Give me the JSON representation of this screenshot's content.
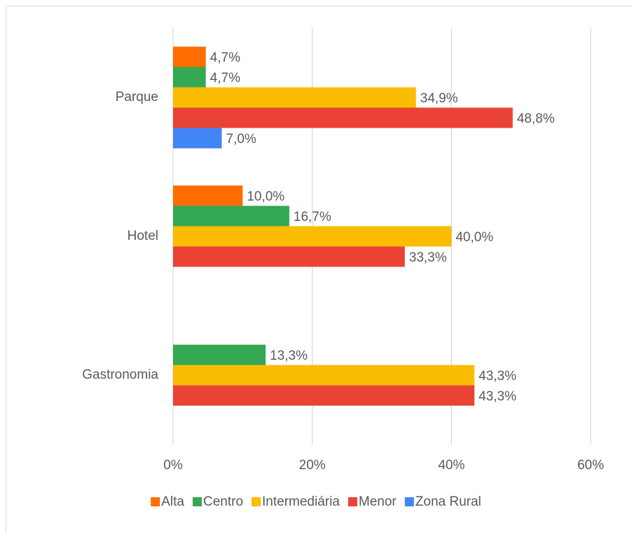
{
  "chart_data": {
    "type": "barh",
    "categories": [
      "Parque",
      "Hotel",
      "Gastronomia"
    ],
    "series": [
      {
        "name": "Alta",
        "color": "#ff6d01",
        "values": [
          4.7,
          10.0,
          null
        ],
        "value_labels": [
          "4,7%",
          "10,0%",
          null
        ]
      },
      {
        "name": "Centro",
        "color": "#34a853",
        "values": [
          4.7,
          16.7,
          13.3
        ],
        "value_labels": [
          "4,7%",
          "16,7%",
          "13,3%"
        ]
      },
      {
        "name": "Intermediária",
        "color": "#fbbc04",
        "values": [
          34.9,
          40.0,
          43.3
        ],
        "value_labels": [
          "34,9%",
          "40,0%",
          "43,3%"
        ]
      },
      {
        "name": "Menor",
        "color": "#ea4335",
        "values": [
          48.8,
          33.3,
          43.3
        ],
        "value_labels": [
          "48,8%",
          "33,3%",
          "43,3%"
        ]
      },
      {
        "name": "Zona Rural",
        "color": "#4285f4",
        "values": [
          7.0,
          null,
          null
        ],
        "value_labels": [
          "7,0%",
          null,
          null
        ]
      }
    ],
    "xlim": [
      0,
      60
    ],
    "xticks": [
      {
        "value": 0,
        "label": "0%"
      },
      {
        "value": 20,
        "label": "20%"
      },
      {
        "value": 40,
        "label": "40%"
      },
      {
        "value": 60,
        "label": "60%"
      }
    ],
    "grid": true,
    "legend": "bottom"
  }
}
